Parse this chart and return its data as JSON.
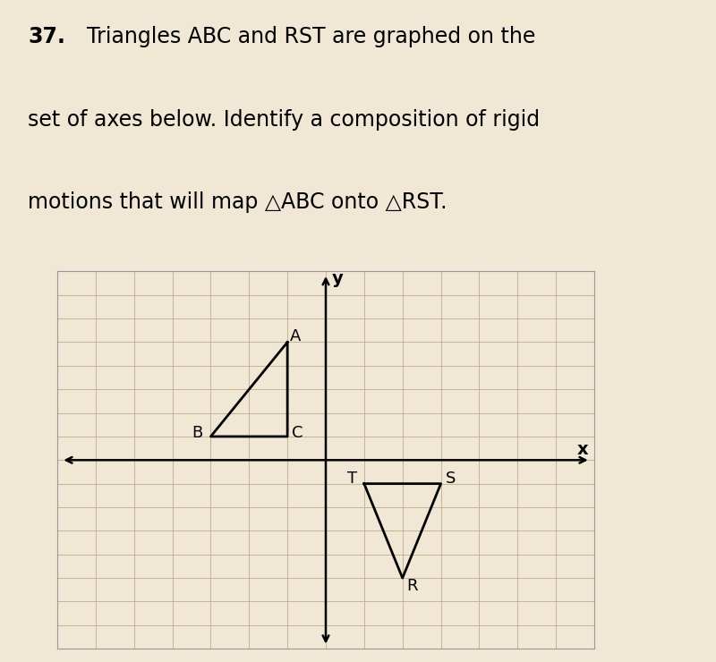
{
  "title_bold": "37.",
  "title_text": " Triangles ABC and RST are graphed on the\nset of axes below. Identify a composition of rigid\nmotions that will map △ABC onto △RST.",
  "triangle_ABC": {
    "A": [
      -1,
      5
    ],
    "B": [
      -3,
      1
    ],
    "C": [
      -1,
      1
    ]
  },
  "triangle_RST": {
    "R": [
      2,
      -5
    ],
    "S": [
      3,
      -1
    ],
    "T": [
      1,
      -1
    ]
  },
  "label_offsets_ABC": {
    "A": [
      0.2,
      0.25
    ],
    "B": [
      -0.35,
      0.15
    ],
    "C": [
      0.25,
      0.15
    ]
  },
  "label_offsets_RST": {
    "R": [
      0.25,
      -0.35
    ],
    "S": [
      0.25,
      0.2
    ],
    "T": [
      -0.3,
      0.2
    ]
  },
  "xlim": [
    -7,
    7
  ],
  "ylim": [
    -8,
    8
  ],
  "axis_color": "#000000",
  "triangle_color": "#000000",
  "background_color": "#f0e8d5",
  "grid_color": "#c0aa88",
  "text_color": "#000000",
  "title_fontsize": 17,
  "label_fontsize": 13,
  "axis_label_fontsize": 14
}
